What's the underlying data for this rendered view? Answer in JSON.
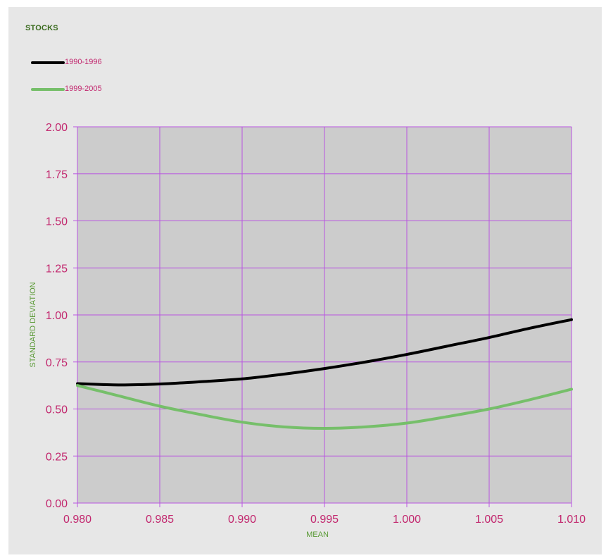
{
  "chart_data": {
    "type": "line",
    "title": "STOCKS",
    "xlabel": "MEAN",
    "ylabel": "STANDARD DEVIATION",
    "xlim": [
      0.98,
      1.01
    ],
    "ylim": [
      0.0,
      2.0
    ],
    "x_ticks": [
      "0.980",
      "0.985",
      "0.990",
      "0.995",
      "1.000",
      "1.005",
      "1.010"
    ],
    "y_ticks": [
      "0.00",
      "0.25",
      "0.50",
      "0.75",
      "1.00",
      "1.25",
      "1.50",
      "1.75",
      "2.00"
    ],
    "grid": true,
    "legend_position": "top-left",
    "series": [
      {
        "name": "1990-1996",
        "color": "#000000",
        "x": [
          0.98,
          0.9825,
          0.985,
          0.9875,
          0.99,
          0.9925,
          0.995,
          0.9975,
          1.0,
          1.0025,
          1.005,
          1.0075,
          1.01
        ],
        "y": [
          0.635,
          0.628,
          0.633,
          0.645,
          0.66,
          0.685,
          0.715,
          0.75,
          0.79,
          0.835,
          0.88,
          0.93,
          0.975
        ]
      },
      {
        "name": "1999-2005",
        "color": "#76bf6a",
        "x": [
          0.98,
          0.9825,
          0.985,
          0.9875,
          0.99,
          0.9925,
          0.995,
          0.9975,
          1.0,
          1.0025,
          1.005,
          1.0075,
          1.01
        ],
        "y": [
          0.625,
          0.57,
          0.515,
          0.47,
          0.43,
          0.405,
          0.397,
          0.405,
          0.425,
          0.46,
          0.5,
          0.55,
          0.605
        ]
      }
    ]
  },
  "colors": {
    "plot_background": "#cccccc",
    "grid": "#b855e0",
    "tick_label": "#c2276e",
    "axis_label": "#5a9a36",
    "title": "#3a6b1e"
  }
}
